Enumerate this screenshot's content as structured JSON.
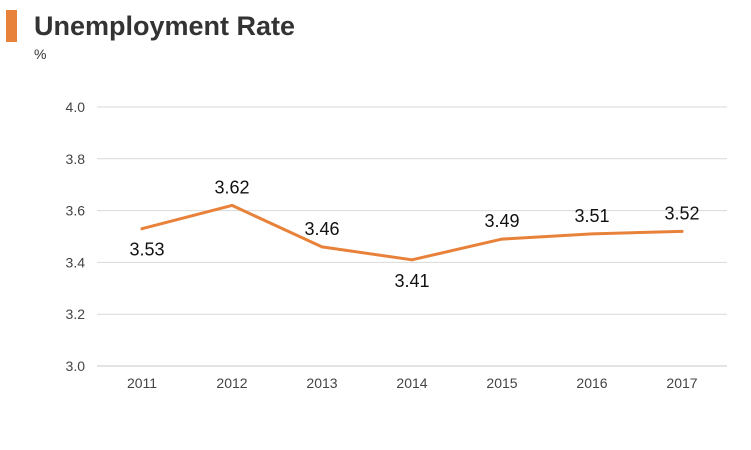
{
  "accent_color": "#e8823a",
  "chart_data": {
    "type": "line",
    "title": "Unemployment Rate",
    "unit": "%",
    "xlabel": "",
    "ylabel": "",
    "categories": [
      "2011",
      "2012",
      "2013",
      "2014",
      "2015",
      "2016",
      "2017"
    ],
    "series": [
      {
        "values": [
          3.53,
          3.62,
          3.46,
          3.41,
          3.49,
          3.51,
          3.52
        ],
        "color": "#e8823a"
      }
    ],
    "data_labels": [
      "3.53",
      "3.62",
      "3.46",
      "3.41",
      "3.49",
      "3.51",
      "3.52"
    ],
    "label_placement": [
      "below",
      "above",
      "above",
      "below",
      "above",
      "above",
      "above"
    ],
    "ylim": [
      3.0,
      4.0
    ],
    "yticks": [
      "3.0",
      "3.2",
      "3.4",
      "3.6",
      "3.8",
      "4.0"
    ],
    "grid": true,
    "grid_color": "#d9d9d9",
    "legend": "none"
  }
}
